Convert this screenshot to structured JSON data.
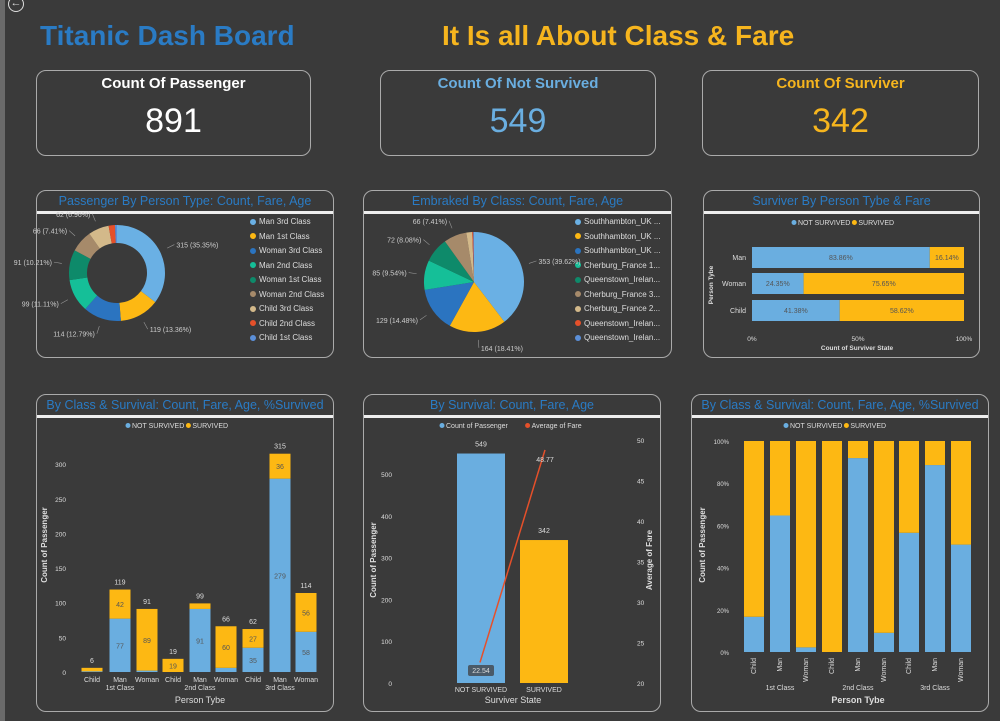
{
  "header": {
    "title": "Titanic Dash Board",
    "subtitle": "It Is all About Class & Fare",
    "back_icon": "back-arrow-icon"
  },
  "colors": {
    "title": "#2a7bc4",
    "subtitle": "#f6b51e",
    "not_survived": "#6aaee0",
    "survived": "#fdb813",
    "fare_line": "#e5502a",
    "background": "#3a3a3a"
  },
  "kpis": [
    {
      "label": "Count Of Passenger",
      "value": "891",
      "color": "#ffffff"
    },
    {
      "label": "Count Of Not Survived",
      "value": "549",
      "color": "#6aaee0"
    },
    {
      "label": "Count Of Surviver",
      "value": "342",
      "color": "#f6b51e"
    }
  ],
  "chart_data": [
    {
      "id": "donut",
      "type": "pie",
      "donut": true,
      "title": "Passenger By Person Type: Count, Fare, Age",
      "categories": [
        "Man 3rd Class",
        "Man 1st Class",
        "Woman 3rd Class",
        "Man 2nd Class",
        "Woman 1st Class",
        "Woman 2nd Class",
        "Child 3rd Class",
        "Child 2nd Class",
        "Child 1st Class"
      ],
      "values": [
        315,
        119,
        114,
        99,
        91,
        66,
        62,
        19,
        6
      ],
      "data_labels": [
        "315 (35.35%)",
        "119 (13.36%)",
        "114 (12.79%)",
        "99 (11.11%)",
        "91 (10.21%)",
        "66 (7.41%)",
        "62 (6.96%)",
        "",
        ""
      ],
      "colors": [
        "#6ab0e4",
        "#fdb813",
        "#2b74c0",
        "#15bf98",
        "#0e8a6a",
        "#a68a6a",
        "#d3b98a",
        "#e5502a",
        "#5b8fd8"
      ],
      "legend": "right"
    },
    {
      "id": "pie",
      "type": "pie",
      "title": "Embraked By Class: Count, Fare, Age",
      "categories": [
        "Southhambton_UK ...",
        "Southhambton_UK ...",
        "Southhambton_UK ...",
        "Cherburg_France 1...",
        "Queenstown_Irelan...",
        "Cherburg_France 3...",
        "Cherburg_France 2...",
        "Queenstown_Irelan...",
        "Queenstown_Irelan..."
      ],
      "values": [
        353,
        164,
        129,
        85,
        72,
        66,
        17,
        3,
        2
      ],
      "data_labels": [
        "353 (39.62%)",
        "164 (18.41%)",
        "129 (14.48%)",
        "85 (9.54%)",
        "72 (8.08%)",
        "66 (7.41%)",
        "",
        "",
        ""
      ],
      "colors": [
        "#6ab0e4",
        "#fdb813",
        "#2b74c0",
        "#15bf98",
        "#0e8a6a",
        "#a68a6a",
        "#d3b98a",
        "#e5502a",
        "#5b8fd8"
      ],
      "legend": "right"
    },
    {
      "id": "hbar",
      "type": "bar",
      "orientation": "horizontal",
      "stacked_percent": true,
      "title": "Surviver By Person Tybe & Fare",
      "categories": [
        "Man",
        "Woman",
        "Child"
      ],
      "series": [
        {
          "name": "NOT SURVIVED",
          "values": [
            83.86,
            24.35,
            41.38
          ],
          "labels": [
            "83.86%",
            "24.35%",
            "41.38%"
          ]
        },
        {
          "name": "SURVIVED",
          "values": [
            16.14,
            75.65,
            58.62
          ],
          "labels": [
            "16.14%",
            "75.65%",
            "58.62%"
          ]
        }
      ],
      "xlabel": "Count of Surviver State",
      "ylabel": "Person Tybe",
      "xticks": [
        "0%",
        "50%",
        "100%"
      ],
      "xlim": [
        0,
        100
      ],
      "legend": "top"
    },
    {
      "id": "stack",
      "type": "bar",
      "stacked": true,
      "title": "By Class & Survival: Count, Fare, Age, %Survived",
      "categories": [
        "Child",
        "Man",
        "Woman",
        "Child",
        "Man",
        "Woman",
        "Child",
        "Man",
        "Woman"
      ],
      "groups": [
        "1st Class",
        "2nd Class",
        "3rd Class"
      ],
      "series": [
        {
          "name": "NOT SURVIVED",
          "values": [
            1,
            77,
            2,
            0,
            91,
            6,
            35,
            279,
            58
          ],
          "labels": [
            "",
            "77",
            "",
            "",
            "91",
            "",
            "35",
            "279",
            "58"
          ]
        },
        {
          "name": "SURVIVED",
          "values": [
            5,
            42,
            89,
            19,
            8,
            60,
            27,
            36,
            56
          ],
          "labels": [
            "",
            "42",
            "89",
            "19",
            "",
            "60",
            "27",
            "36",
            "56"
          ]
        }
      ],
      "totals": [
        "6",
        "119",
        "91",
        "19",
        "99",
        "66",
        "62",
        "315",
        "114"
      ],
      "xlabel": "Person Tybe",
      "ylabel": "Count of Passenger",
      "yticks": [
        0,
        50,
        100,
        150,
        200,
        250,
        300
      ],
      "ylim": [
        0,
        315
      ],
      "legend": "top"
    },
    {
      "id": "combo",
      "type": "bar",
      "title": "By Survival: Count, Fare, Age",
      "categories": [
        "NOT SURVIVED",
        "SURVIVED"
      ],
      "series": [
        {
          "name": "Count of Passenger",
          "values": [
            549,
            342
          ],
          "labels": [
            "549",
            "342"
          ]
        },
        {
          "name": "Average of Fare",
          "type": "line",
          "axis": "right",
          "values": [
            22.54,
            48.77
          ],
          "labels": [
            "22.54",
            "48.77"
          ]
        }
      ],
      "xlabel": "Surviver State",
      "ylabel": "Count of Passenger",
      "y2label": "Average of Fare",
      "yticks": [
        0,
        100,
        200,
        300,
        400,
        500
      ],
      "y2ticks": [
        20,
        25,
        30,
        35,
        40,
        45,
        50
      ],
      "ylim": [
        0,
        549
      ],
      "y2lim": [
        20,
        50
      ],
      "legend": "top"
    },
    {
      "id": "pct",
      "type": "bar",
      "stacked_percent": true,
      "title": "By Class & Survival: Count, Fare, Age, %Survived",
      "categories": [
        "Child",
        "Man",
        "Woman",
        "Child",
        "Man",
        "Woman",
        "Child",
        "Man",
        "Woman"
      ],
      "groups": [
        "1st Class",
        "2nd Class",
        "3rd Class"
      ],
      "series": [
        {
          "name": "NOT SURVIVED",
          "values": [
            16.7,
            64.7,
            2.2,
            0,
            91.9,
            9.1,
            56.5,
            88.6,
            50.9
          ]
        },
        {
          "name": "SURVIVED",
          "values": [
            83.3,
            35.3,
            97.8,
            100,
            8.1,
            90.9,
            43.5,
            11.4,
            49.1
          ]
        }
      ],
      "xlabel": "Person Tybe",
      "ylabel": "Count of Passenger",
      "yticks": [
        "0%",
        "20%",
        "40%",
        "60%",
        "80%",
        "100%"
      ],
      "ylim": [
        0,
        100
      ],
      "legend": "top"
    }
  ]
}
